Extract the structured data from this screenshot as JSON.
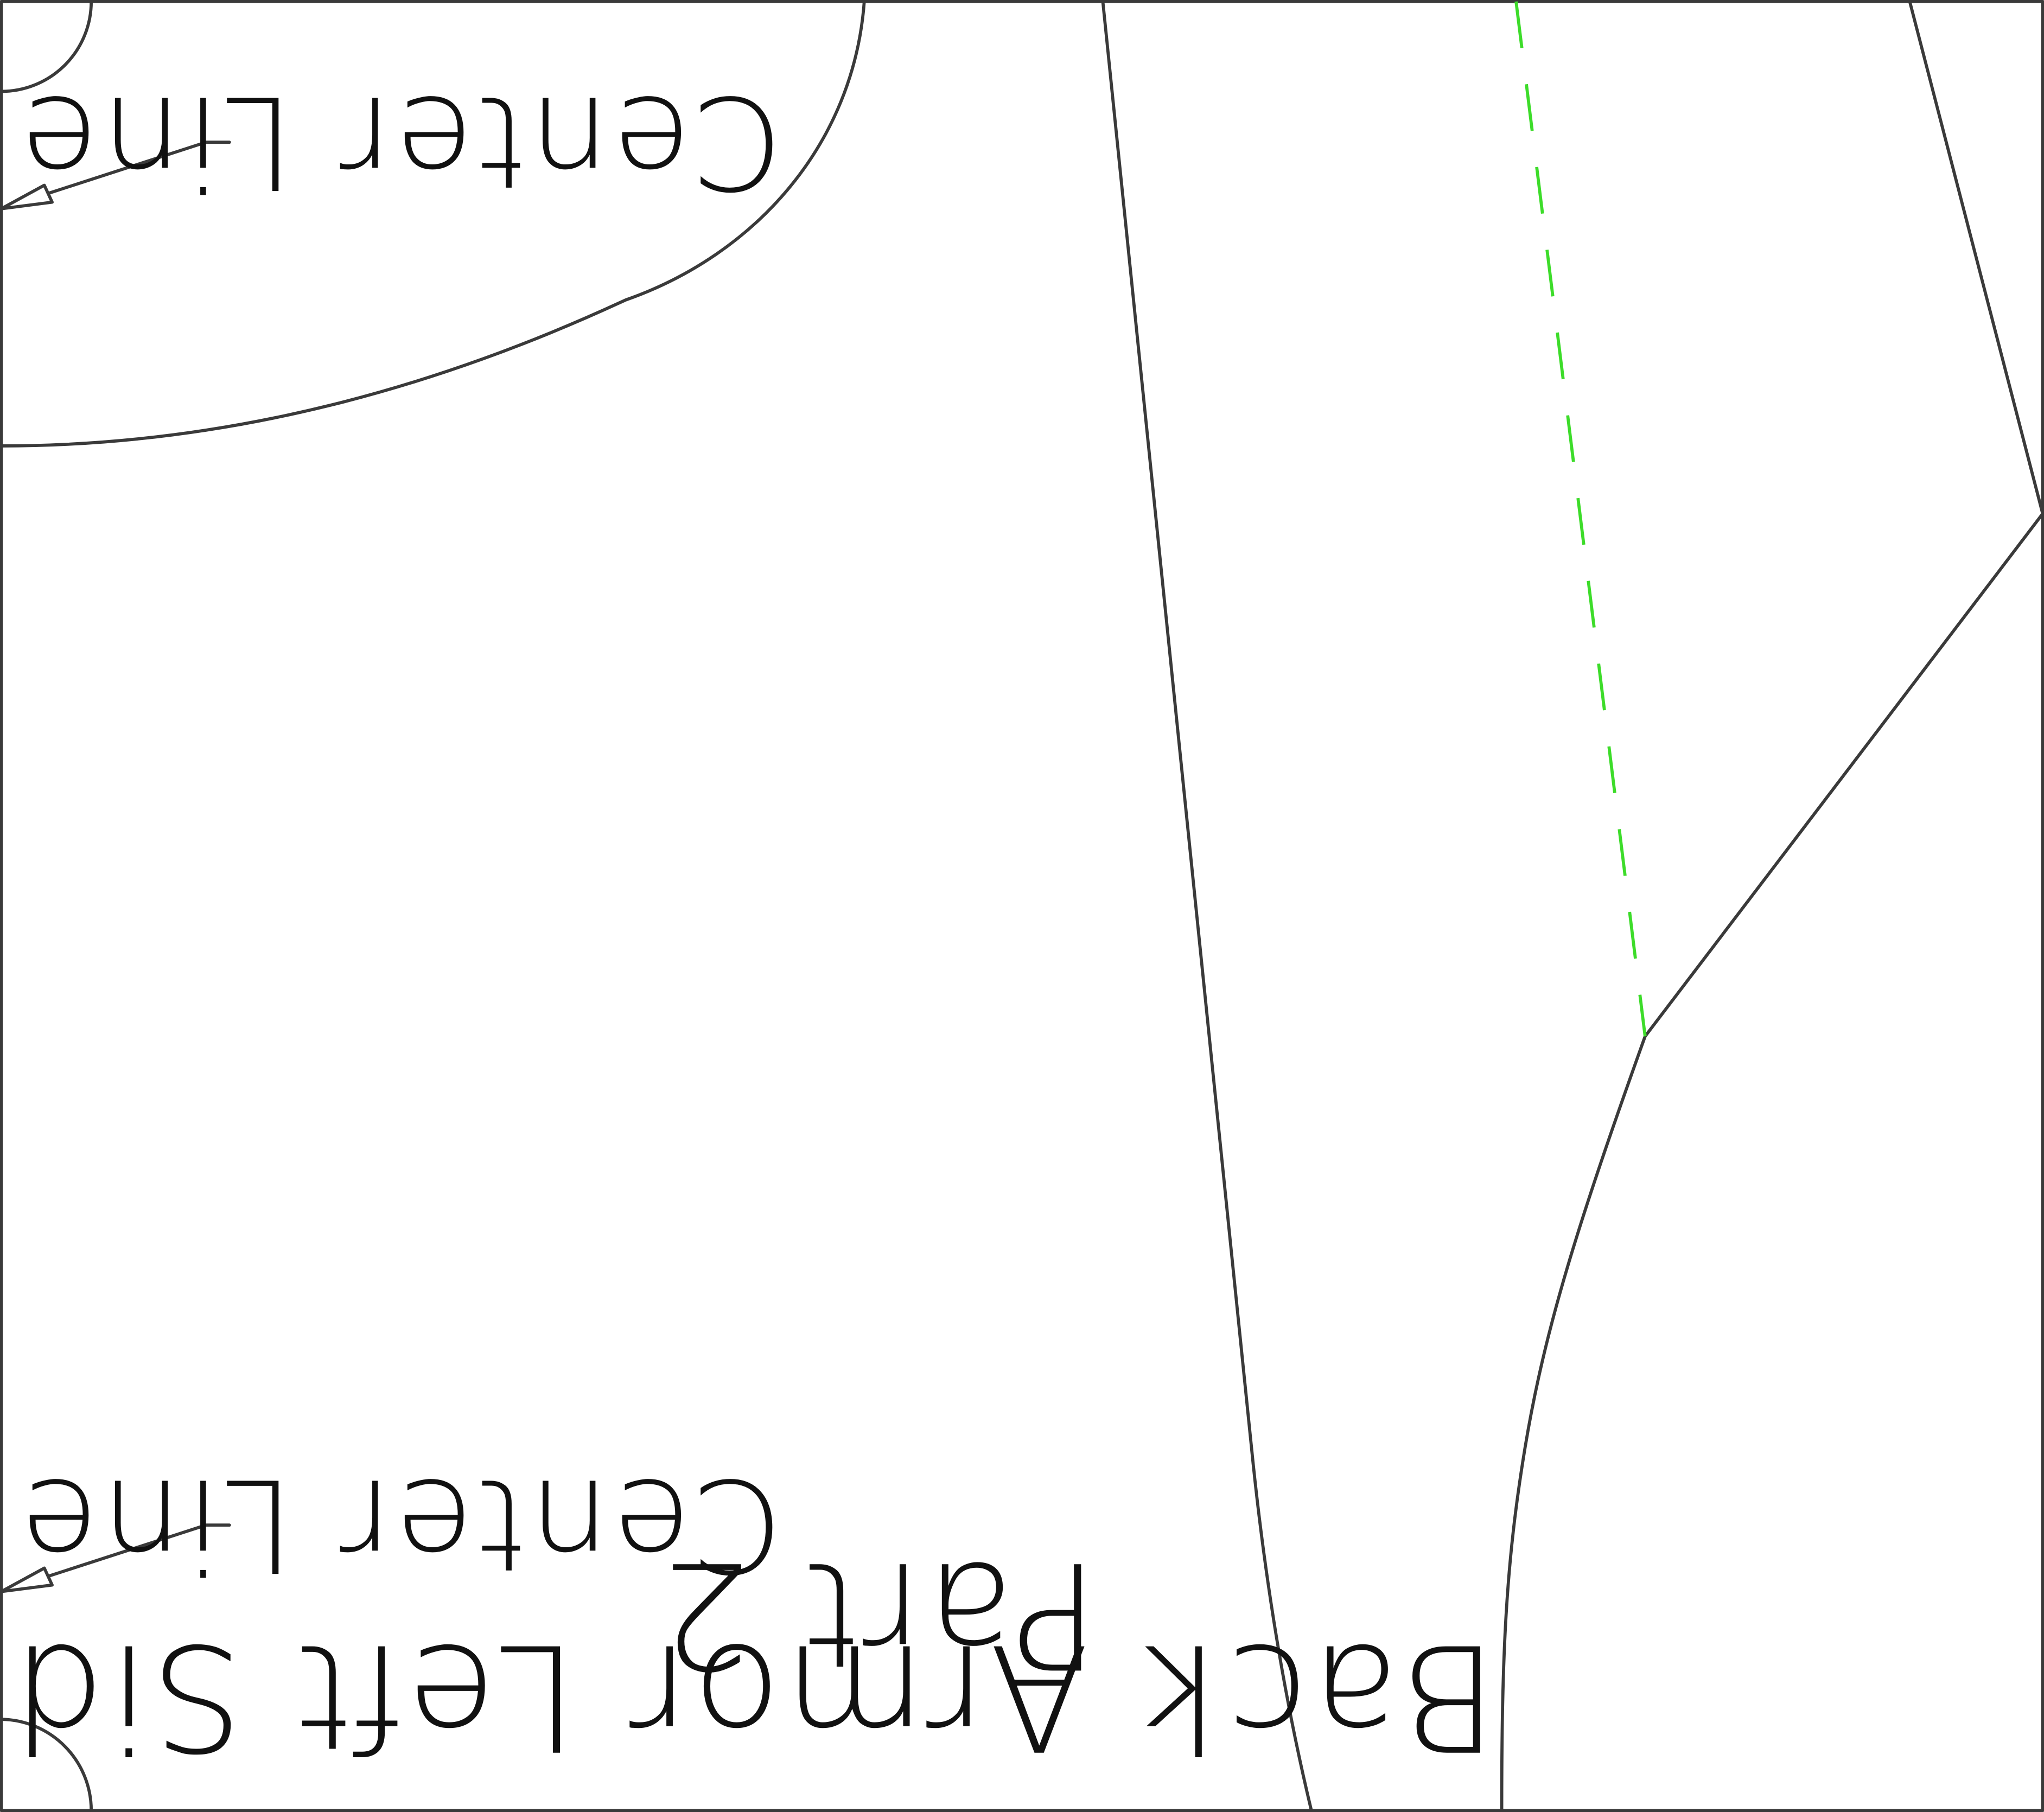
{
  "labels": {
    "center_line_top": "Center Line",
    "center_line_bottom": "Center Line",
    "piece_title": "Back Armor Left Side",
    "piece_part": "Part 2"
  },
  "colors": {
    "outline": "#3a3a3a",
    "fold_line": "#3ddc2a",
    "text": "#111111",
    "background": "#ffffff"
  }
}
